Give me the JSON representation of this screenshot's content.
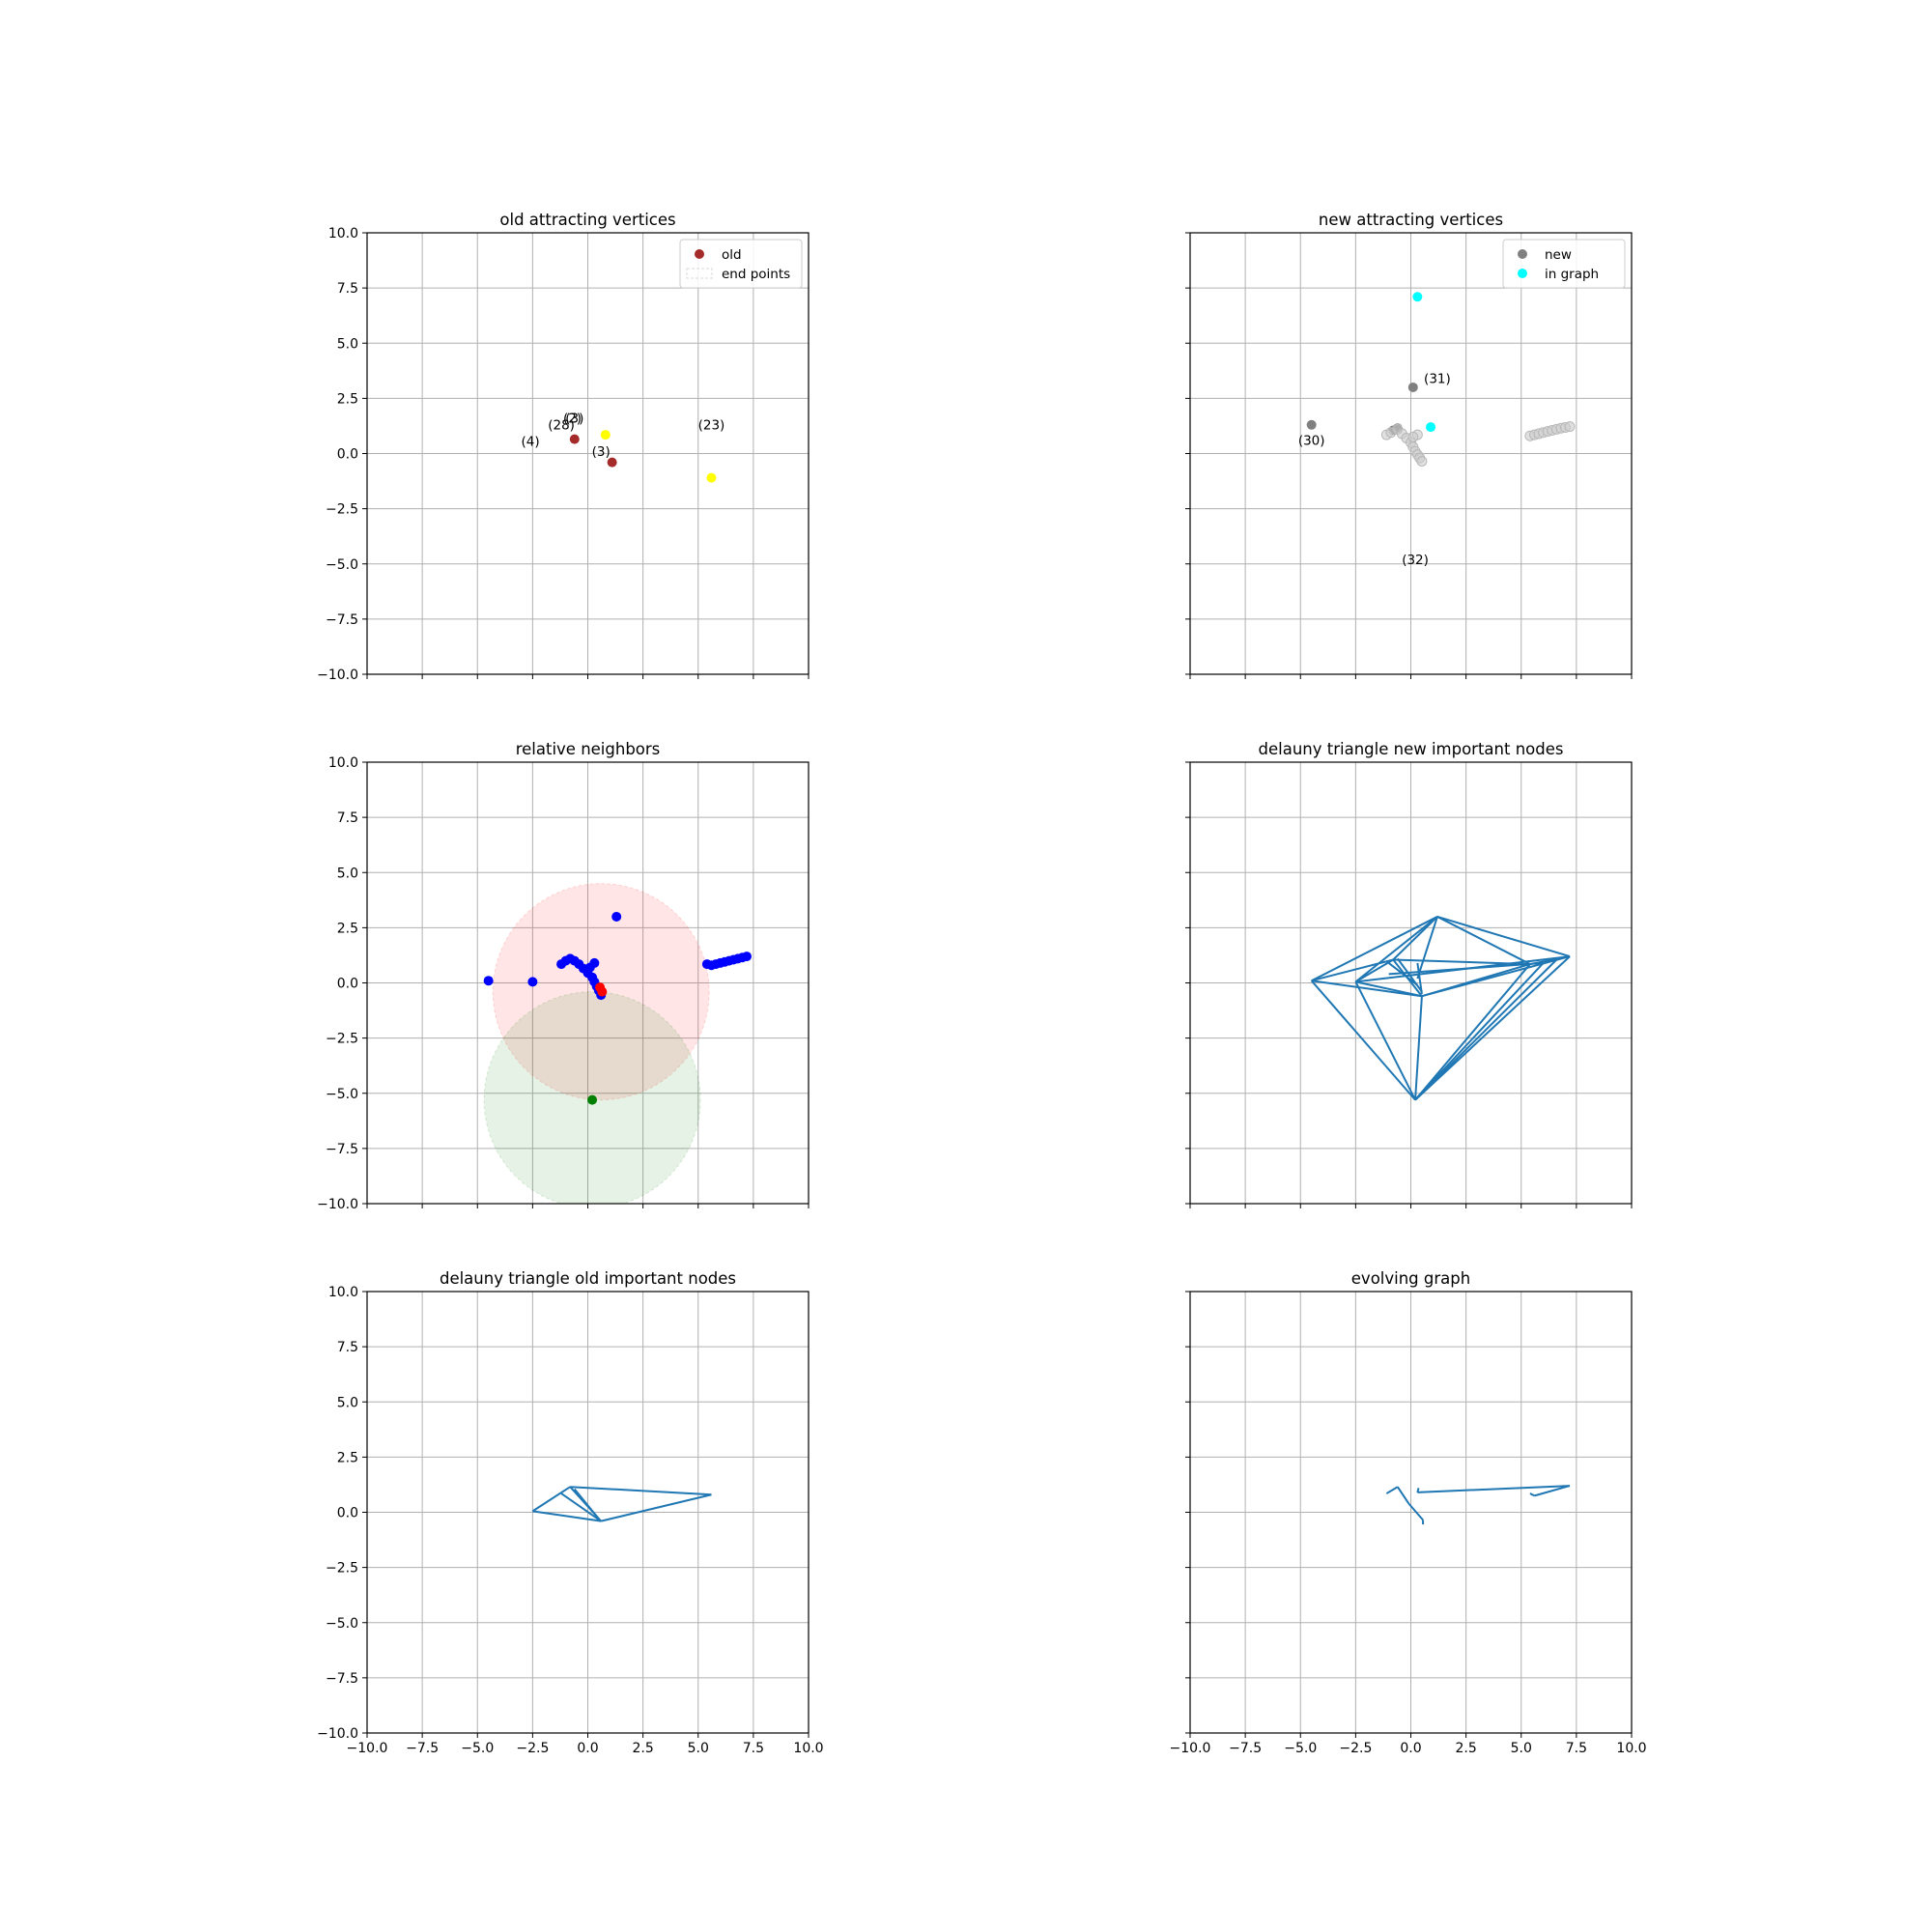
{
  "chart_data": [
    {
      "type": "scatter",
      "title": "old attracting vertices",
      "xlim": [
        -10,
        10
      ],
      "ylim": [
        -10,
        10
      ],
      "xticks": [
        "−10.0",
        "−7.5",
        "−5.0",
        "−2.5",
        "0.0",
        "2.5",
        "5.0",
        "7.5",
        "10.0"
      ],
      "yticks": [
        "−10.0",
        "−7.5",
        "−5.0",
        "−2.5",
        "0.0",
        "2.5",
        "5.0",
        "7.5",
        "10.0"
      ],
      "show_xtick_labels": false,
      "show_ytick_labels": true,
      "grid": true,
      "legend": {
        "position": "top-right",
        "entries": [
          {
            "label": "old",
            "marker": "dot",
            "color": "#a52a2a"
          },
          {
            "label": "end points",
            "marker": "dashed-box",
            "color": "#d9d9d9"
          }
        ]
      },
      "series": [
        {
          "name": "old",
          "color": "#a52a2a",
          "x": [
            -0.6,
            1.1
          ],
          "y": [
            0.65,
            -0.4
          ]
        },
        {
          "name": "",
          "color": "#ffff00",
          "x": [
            0.8,
            5.6
          ],
          "y": [
            0.85,
            -1.1
          ]
        }
      ],
      "annotations": [
        {
          "text": "(4)",
          "x": -2.6,
          "y": 0.35
        },
        {
          "text": "(28)",
          "x": -1.2,
          "y": 1.1
        },
        {
          "text": "(2)",
          "x": -0.7,
          "y": 1.4
        },
        {
          "text": "(3)",
          "x": -0.6,
          "y": 1.4
        },
        {
          "text": "(3)",
          "x": 0.6,
          "y": -0.1
        },
        {
          "text": "(23)",
          "x": 5.6,
          "y": 1.1
        }
      ]
    },
    {
      "type": "scatter",
      "title": "new attracting vertices",
      "xlim": [
        -10,
        10
      ],
      "ylim": [
        -10,
        10
      ],
      "xticks": [
        "−10.0",
        "−7.5",
        "−5.0",
        "−2.5",
        "0.0",
        "2.5",
        "5.0",
        "7.5",
        "10.0"
      ],
      "yticks": [
        "−10.0",
        "−7.5",
        "−5.0",
        "−2.5",
        "0.0",
        "2.5",
        "5.0",
        "7.5",
        "10.0"
      ],
      "show_xtick_labels": false,
      "show_ytick_labels": false,
      "grid": true,
      "legend": {
        "position": "top-right",
        "entries": [
          {
            "label": "new",
            "marker": "dot",
            "color": "#808080"
          },
          {
            "label": "in graph",
            "marker": "dot",
            "color": "#00ffff"
          }
        ]
      },
      "series": [
        {
          "name": "new",
          "color": "#808080",
          "x": [
            -4.5,
            0.1,
            -0.8,
            -0.6
          ],
          "y": [
            1.3,
            3.0,
            1.05,
            1.15
          ]
        },
        {
          "name": "in graph",
          "color": "#00ffff",
          "x": [
            0.3,
            0.9
          ],
          "y": [
            7.1,
            1.2
          ]
        },
        {
          "name": "",
          "color": "#cccccc",
          "x": [
            -1.1,
            -0.9,
            -0.6,
            -0.4,
            -0.2,
            0.0,
            0.1,
            0.2,
            0.3,
            0.4,
            0.5,
            0.3,
            0.1,
            5.4,
            5.6,
            5.8,
            6.0,
            6.2,
            6.4,
            6.6,
            6.8,
            7.0,
            7.2
          ],
          "y": [
            0.85,
            0.95,
            1.1,
            0.9,
            0.7,
            0.5,
            0.3,
            0.1,
            -0.05,
            -0.2,
            -0.35,
            0.85,
            0.75,
            0.8,
            0.85,
            0.9,
            0.95,
            1.0,
            1.05,
            1.1,
            1.15,
            1.18,
            1.22
          ]
        }
      ],
      "annotations": [
        {
          "text": "(31)",
          "x": 1.2,
          "y": 3.2
        },
        {
          "text": "(30)",
          "x": -4.5,
          "y": 0.4
        },
        {
          "text": "(32)",
          "x": 0.2,
          "y": -5.0
        }
      ]
    },
    {
      "type": "scatter",
      "title": "relative neighbors",
      "xlim": [
        -10,
        10
      ],
      "ylim": [
        -10,
        10
      ],
      "xticks": [
        "−10.0",
        "−7.5",
        "−5.0",
        "−2.5",
        "0.0",
        "2.5",
        "5.0",
        "7.5",
        "10.0"
      ],
      "yticks": [
        "−10.0",
        "−7.5",
        "−5.0",
        "−2.5",
        "0.0",
        "2.5",
        "5.0",
        "7.5",
        "10.0"
      ],
      "show_xtick_labels": false,
      "show_ytick_labels": true,
      "grid": true,
      "circles": [
        {
          "cx": 0.6,
          "cy": -0.4,
          "r": 4.9,
          "color": "#ff0000"
        },
        {
          "cx": 0.2,
          "cy": -5.3,
          "r": 4.9,
          "color": "#008000"
        }
      ],
      "series": [
        {
          "name": "",
          "color": "#0000ff",
          "x": [
            -4.5,
            -2.5,
            -1.2,
            -1.0,
            -0.8,
            -0.6,
            -0.4,
            -0.2,
            0.0,
            0.2,
            0.3,
            0.4,
            0.5,
            0.6,
            0.3,
            0.1,
            1.3,
            5.4,
            5.6,
            5.8,
            6.0,
            6.2,
            6.4,
            6.6,
            6.8,
            7.0,
            7.2
          ],
          "y": [
            0.1,
            0.05,
            0.85,
            1.0,
            1.1,
            1.0,
            0.85,
            0.65,
            0.45,
            0.25,
            0.05,
            -0.15,
            -0.35,
            -0.55,
            0.9,
            0.7,
            3.0,
            0.85,
            0.8,
            0.85,
            0.9,
            0.95,
            1.0,
            1.05,
            1.1,
            1.15,
            1.2
          ]
        },
        {
          "name": "",
          "color": "#ff0000",
          "x": [
            0.55,
            0.65
          ],
          "y": [
            -0.2,
            -0.4
          ]
        },
        {
          "name": "",
          "color": "#008000",
          "x": [
            0.2
          ],
          "y": [
            -5.3
          ]
        }
      ],
      "annotations": []
    },
    {
      "type": "line",
      "title": "delauny triangle new important nodes",
      "xlim": [
        -10,
        10
      ],
      "ylim": [
        -10,
        10
      ],
      "xticks": [
        "−10.0",
        "−7.5",
        "−5.0",
        "−2.5",
        "0.0",
        "2.5",
        "5.0",
        "7.5",
        "10.0"
      ],
      "yticks": [
        "−10.0",
        "−7.5",
        "−5.0",
        "−2.5",
        "0.0",
        "2.5",
        "5.0",
        "7.5",
        "10.0"
      ],
      "show_xtick_labels": false,
      "show_ytick_labels": false,
      "grid": true,
      "edges": [
        [
          [
            -4.5,
            0.1
          ],
          [
            1.2,
            3.0
          ]
        ],
        [
          [
            -4.5,
            0.1
          ],
          [
            0.2,
            -5.3
          ]
        ],
        [
          [
            -4.5,
            0.1
          ],
          [
            -0.8,
            1.05
          ]
        ],
        [
          [
            -4.5,
            0.1
          ],
          [
            0.5,
            -0.6
          ]
        ],
        [
          [
            -2.5,
            0.05
          ],
          [
            1.2,
            3.0
          ]
        ],
        [
          [
            -2.5,
            0.05
          ],
          [
            0.2,
            -5.3
          ]
        ],
        [
          [
            -2.5,
            0.05
          ],
          [
            -0.8,
            1.05
          ]
        ],
        [
          [
            -2.5,
            0.05
          ],
          [
            0.5,
            -0.6
          ]
        ],
        [
          [
            1.2,
            3.0
          ],
          [
            7.2,
            1.2
          ]
        ],
        [
          [
            1.2,
            3.0
          ],
          [
            5.4,
            0.85
          ]
        ],
        [
          [
            1.2,
            3.0
          ],
          [
            -0.8,
            1.05
          ]
        ],
        [
          [
            1.2,
            3.0
          ],
          [
            0.3,
            0.2
          ]
        ],
        [
          [
            0.2,
            -5.3
          ],
          [
            7.2,
            1.2
          ]
        ],
        [
          [
            0.2,
            -5.3
          ],
          [
            5.4,
            0.85
          ]
        ],
        [
          [
            0.2,
            -5.3
          ],
          [
            6.0,
            0.9
          ]
        ],
        [
          [
            0.2,
            -5.3
          ],
          [
            6.6,
            1.05
          ]
        ],
        [
          [
            0.2,
            -5.3
          ],
          [
            0.5,
            -0.6
          ]
        ],
        [
          [
            0.5,
            -0.6
          ],
          [
            7.2,
            1.2
          ]
        ],
        [
          [
            0.5,
            -0.6
          ],
          [
            5.4,
            0.85
          ]
        ],
        [
          [
            -0.8,
            1.05
          ],
          [
            5.4,
            0.85
          ]
        ],
        [
          [
            -0.8,
            1.05
          ],
          [
            0.5,
            -0.6
          ]
        ],
        [
          [
            -1.0,
            0.9
          ],
          [
            0.3,
            -0.1
          ]
        ],
        [
          [
            -0.6,
            1.1
          ],
          [
            0.5,
            -0.4
          ]
        ],
        [
          [
            0.3,
            0.9
          ],
          [
            0.5,
            -0.5
          ]
        ],
        [
          [
            5.4,
            0.85
          ],
          [
            7.2,
            1.2
          ]
        ],
        [
          [
            -2.5,
            0.05
          ],
          [
            7.2,
            1.2
          ]
        ],
        [
          [
            -1.0,
            0.4
          ],
          [
            6.0,
            0.9
          ]
        ]
      ],
      "annotations": []
    },
    {
      "type": "line",
      "title": "delauny triangle old important nodes",
      "xlim": [
        -10,
        10
      ],
      "ylim": [
        -10,
        10
      ],
      "xticks": [
        "−10.0",
        "−7.5",
        "−5.0",
        "−2.5",
        "0.0",
        "2.5",
        "5.0",
        "7.5",
        "10.0"
      ],
      "yticks": [
        "−10.0",
        "−7.5",
        "−5.0",
        "−2.5",
        "0.0",
        "2.5",
        "5.0",
        "7.5",
        "10.0"
      ],
      "show_xtick_labels": true,
      "show_ytick_labels": true,
      "grid": true,
      "edges": [
        [
          [
            -2.5,
            0.05
          ],
          [
            -0.8,
            1.15
          ]
        ],
        [
          [
            -2.5,
            0.05
          ],
          [
            0.6,
            -0.4
          ]
        ],
        [
          [
            -0.8,
            1.15
          ],
          [
            5.6,
            0.8
          ]
        ],
        [
          [
            0.6,
            -0.4
          ],
          [
            5.6,
            0.8
          ]
        ],
        [
          [
            -0.8,
            1.15
          ],
          [
            0.6,
            -0.4
          ]
        ],
        [
          [
            -1.2,
            0.85
          ],
          [
            0.6,
            -0.4
          ]
        ],
        [
          [
            -0.6,
            1.05
          ],
          [
            0.5,
            -0.3
          ]
        ]
      ],
      "annotations": []
    },
    {
      "type": "line",
      "title": "evolving graph",
      "xlim": [
        -10,
        10
      ],
      "ylim": [
        -10,
        10
      ],
      "xticks": [
        "−10.0",
        "−7.5",
        "−5.0",
        "−2.5",
        "0.0",
        "2.5",
        "5.0",
        "7.5",
        "10.0"
      ],
      "yticks": [
        "−10.0",
        "−7.5",
        "−5.0",
        "−2.5",
        "0.0",
        "2.5",
        "5.0",
        "7.5",
        "10.0"
      ],
      "show_xtick_labels": true,
      "show_ytick_labels": false,
      "grid": true,
      "edges": [
        [
          [
            -1.1,
            0.85
          ],
          [
            -0.6,
            1.15
          ]
        ],
        [
          [
            -0.6,
            1.15
          ],
          [
            -0.1,
            0.4
          ]
        ],
        [
          [
            -0.1,
            0.4
          ],
          [
            0.55,
            -0.35
          ]
        ],
        [
          [
            0.55,
            -0.35
          ],
          [
            0.55,
            -0.55
          ]
        ],
        [
          [
            0.3,
            0.9
          ],
          [
            7.2,
            1.2
          ]
        ],
        [
          [
            0.3,
            0.9
          ],
          [
            0.35,
            1.1
          ]
        ],
        [
          [
            5.4,
            0.85
          ],
          [
            5.6,
            0.75
          ]
        ],
        [
          [
            5.6,
            0.75
          ],
          [
            7.2,
            1.2
          ]
        ]
      ],
      "annotations": []
    }
  ]
}
